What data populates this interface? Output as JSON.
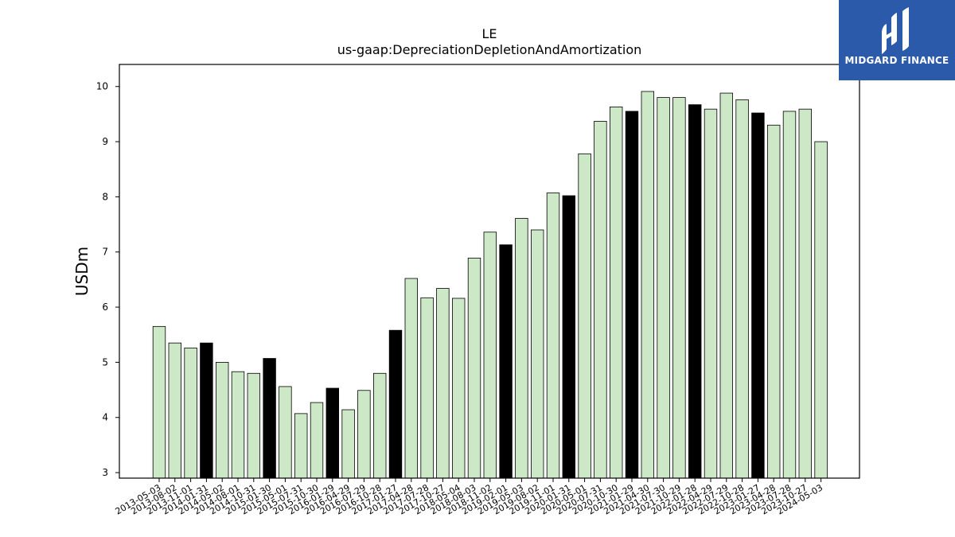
{
  "chart_data": {
    "type": "bar",
    "title": "LE",
    "subtitle": "us-gaap:DepreciationDepletionAndAmortization",
    "ylabel": "USDm",
    "xlabel": "",
    "ylim": [
      2.9,
      10.4
    ],
    "yticks": [
      3,
      4,
      5,
      6,
      7,
      8,
      9,
      10
    ],
    "grid": false,
    "colors": {
      "bar": "#cde8c6",
      "highlight": "#000000",
      "edge": "#000000"
    },
    "categories": [
      "2013-05-03",
      "2013-08-02",
      "2013-11-01",
      "2014-01-31",
      "2014-05-02",
      "2014-08-01",
      "2014-10-31",
      "2015-01-30",
      "2015-05-01",
      "2015-07-31",
      "2015-10-30",
      "2016-01-29",
      "2016-04-29",
      "2016-07-29",
      "2016-10-28",
      "2017-01-27",
      "2017-04-28",
      "2017-07-28",
      "2017-10-27",
      "2018-05-04",
      "2018-08-03",
      "2018-11-02",
      "2019-02-01",
      "2019-05-03",
      "2019-08-02",
      "2019-11-01",
      "2020-01-31",
      "2020-05-01",
      "2020-07-31",
      "2020-10-30",
      "2021-01-29",
      "2021-04-30",
      "2021-07-30",
      "2021-10-29",
      "2022-01-28",
      "2022-04-29",
      "2022-07-29",
      "2022-10-28",
      "2023-01-27",
      "2023-04-28",
      "2023-07-28",
      "2023-10-27",
      "2024-05-03"
    ],
    "values": [
      5.65,
      5.35,
      5.26,
      5.35,
      5.0,
      4.83,
      4.8,
      5.07,
      4.56,
      4.07,
      4.27,
      4.53,
      4.14,
      4.49,
      4.8,
      5.58,
      6.52,
      6.17,
      6.34,
      6.16,
      6.89,
      7.36,
      7.13,
      7.61,
      7.4,
      8.07,
      8.02,
      8.78,
      9.37,
      9.63,
      9.55,
      9.91,
      9.8,
      9.8,
      9.67,
      9.59,
      9.88,
      9.76,
      9.52,
      9.3,
      9.55,
      9.59,
      9.0
    ],
    "highlighted": [
      "2014-01-31",
      "2015-01-30",
      "2016-01-29",
      "2017-01-27",
      "2019-02-01",
      "2020-01-31",
      "2021-01-29",
      "2022-01-28",
      "2023-01-27"
    ]
  },
  "logo": {
    "text": "MIDGARD FINANCE",
    "background": "#2b5aab"
  }
}
